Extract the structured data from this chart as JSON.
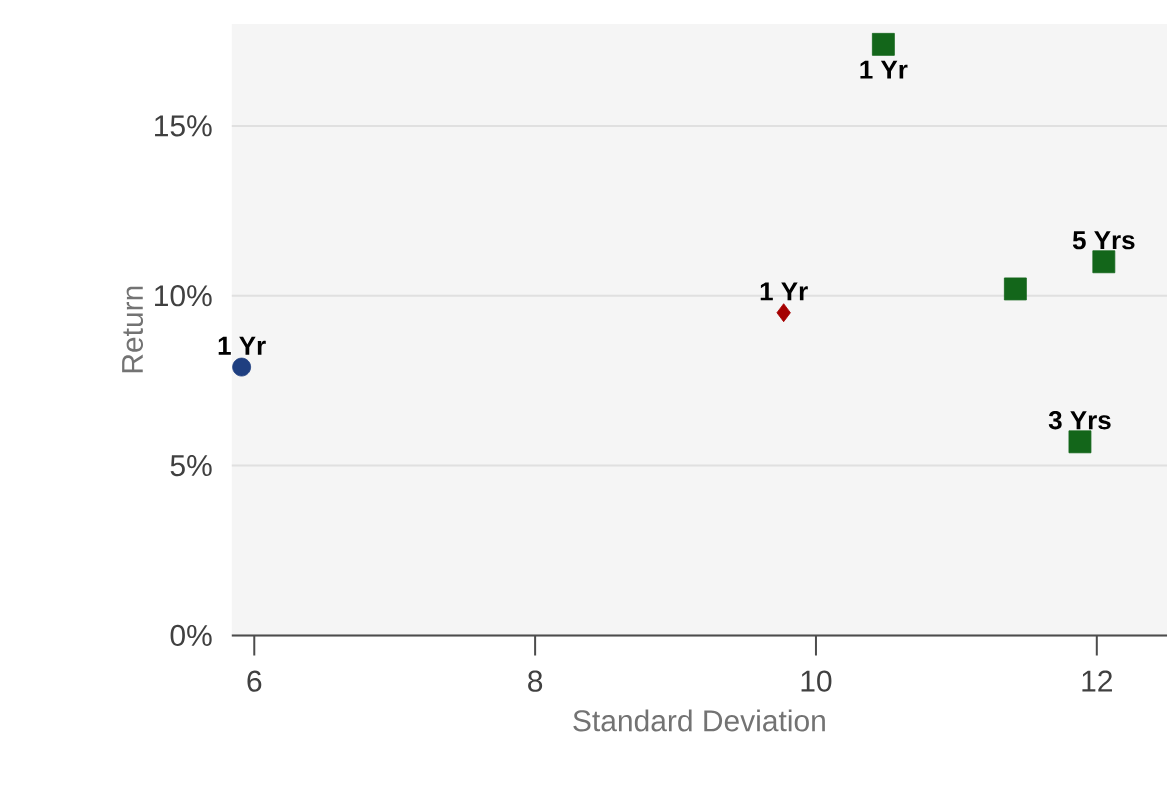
{
  "chart_data": {
    "type": "scatter",
    "xlabel": "Standard Deviation",
    "ylabel": "Return",
    "xlim": [
      5.84,
      12.5
    ],
    "xticks": [
      6,
      8,
      10,
      12
    ],
    "ylim": [
      0,
      18
    ],
    "yticks": [
      {
        "value": 0,
        "label": "0%"
      },
      {
        "value": 5,
        "label": "5%"
      },
      {
        "value": 10,
        "label": "10%"
      },
      {
        "value": 15,
        "label": "15%"
      }
    ],
    "grid": "y",
    "series": [
      {
        "color": "#1f3f80",
        "marker": "circle",
        "x": [
          5.91
        ],
        "values": [
          7.9
        ]
      },
      {
        "color": "#a50000",
        "marker": "diamond",
        "x": [
          9.77
        ],
        "values": [
          9.5
        ]
      },
      {
        "color": "#13661a",
        "marker": "square",
        "x": [
          10.48,
          11.42,
          12.05,
          11.88
        ],
        "values": [
          17.4,
          10.2,
          11.0,
          5.7
        ]
      }
    ],
    "annotations": [
      {
        "text": "1 Yr",
        "x": 5.91,
        "y": 7.9
      },
      {
        "text": "1 Yr",
        "x": 9.77,
        "y": 9.5
      },
      {
        "text": "1 Yr",
        "x": 10.48,
        "y": 17.4
      },
      {
        "text": "5 Yrs",
        "x": 12.05,
        "y": 11.0
      },
      {
        "text": "3 Yrs",
        "x": 11.88,
        "y": 5.7
      }
    ]
  }
}
